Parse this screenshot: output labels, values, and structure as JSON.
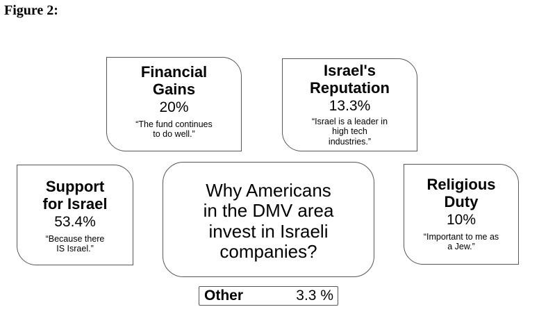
{
  "figure_label": "Figure 2:",
  "center": {
    "lines": [
      "Why Americans",
      "in the DMV area",
      "invest in Israeli",
      "companies?"
    ]
  },
  "reasons": {
    "financial": {
      "title_lines": [
        "Financial",
        "Gains"
      ],
      "percent": "20%",
      "quote_lines": [
        "“The fund continues",
        "to do well.”"
      ]
    },
    "reputation": {
      "title_lines": [
        "Israel's",
        "Reputation"
      ],
      "percent": "13.3%",
      "quote_lines": [
        "“Israel is a leader in",
        "high tech",
        "industries.”"
      ]
    },
    "support": {
      "title_lines": [
        "Support",
        "for Israel"
      ],
      "percent": "53.4%",
      "quote_lines": [
        "“Because there",
        "IS Israel.”"
      ]
    },
    "religious": {
      "title_lines": [
        "Religious",
        "Duty"
      ],
      "percent": "10%",
      "quote_lines": [
        "“Important to me as",
        "a Jew.”"
      ]
    }
  },
  "other": {
    "label": "Other",
    "percent": "3.3 %"
  }
}
